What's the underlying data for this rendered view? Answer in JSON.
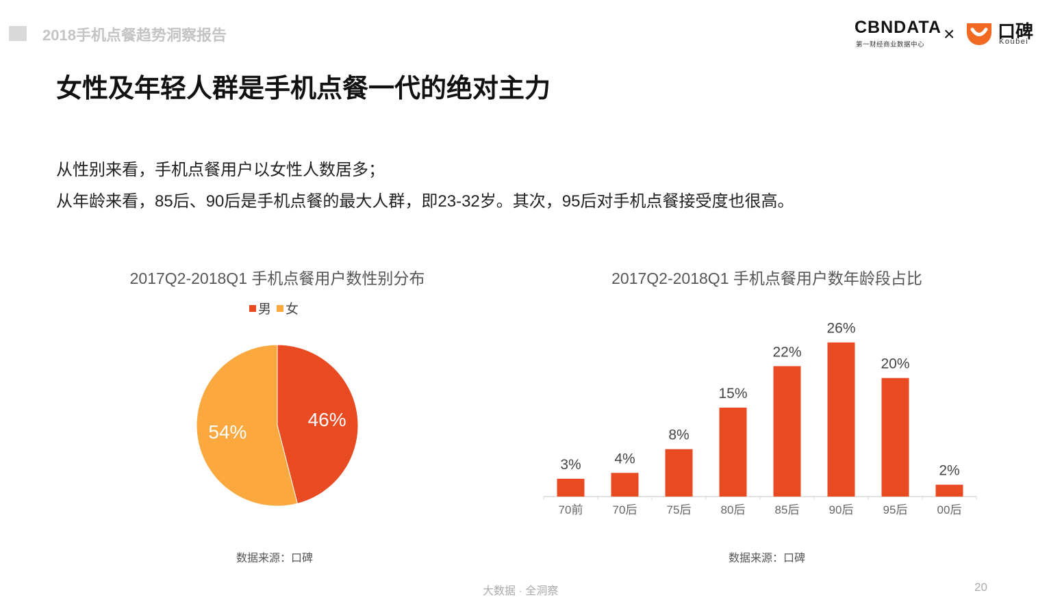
{
  "header": {
    "report_title": "2018手机点餐趋势洞察报告",
    "logo": {
      "cbndata": "CBNDATA",
      "cbndata_sub": "第一财经商业数据中心",
      "times": "×",
      "koubei_cn": "口碑",
      "koubei_en": "Koubei"
    }
  },
  "headline": "女性及年轻人群是手机点餐一代的绝对主力",
  "summary": [
    "从性别来看，手机点餐用户以女性人数居多；",
    "从年龄来看，85后、90后是手机点餐的最大人群，即23-32岁。其次，95后对手机点餐接受度也很高。"
  ],
  "colors": {
    "accent": "#e84a22",
    "secondary": "#fba83f",
    "axis": "#d9d9d9",
    "label": "#666666"
  },
  "chart_data": [
    {
      "type": "pie",
      "title": "2017Q2-2018Q1 手机点餐用户数性别分布",
      "categories": [
        "男",
        "女"
      ],
      "values": [
        46,
        54
      ],
      "labels": [
        "46%",
        "54%"
      ],
      "legend": [
        "男",
        "女"
      ],
      "legend_position": "top"
    },
    {
      "type": "bar",
      "title": "2017Q2-2018Q1 手机点餐用户数年龄段占比",
      "categories": [
        "70前",
        "70后",
        "75后",
        "80后",
        "85后",
        "90后",
        "95后",
        "00后"
      ],
      "values": [
        3,
        4,
        8,
        15,
        22,
        26,
        20,
        2
      ],
      "labels": [
        "3%",
        "4%",
        "8%",
        "15%",
        "22%",
        "26%",
        "20%",
        "2%"
      ],
      "unit": "%",
      "ylim": [
        0,
        30
      ],
      "grid": false
    }
  ],
  "sources": {
    "left": "数据来源：口碑",
    "right": "数据来源：口碑"
  },
  "footer": {
    "text": "大数据 · 全洞察",
    "page_number": "20"
  }
}
